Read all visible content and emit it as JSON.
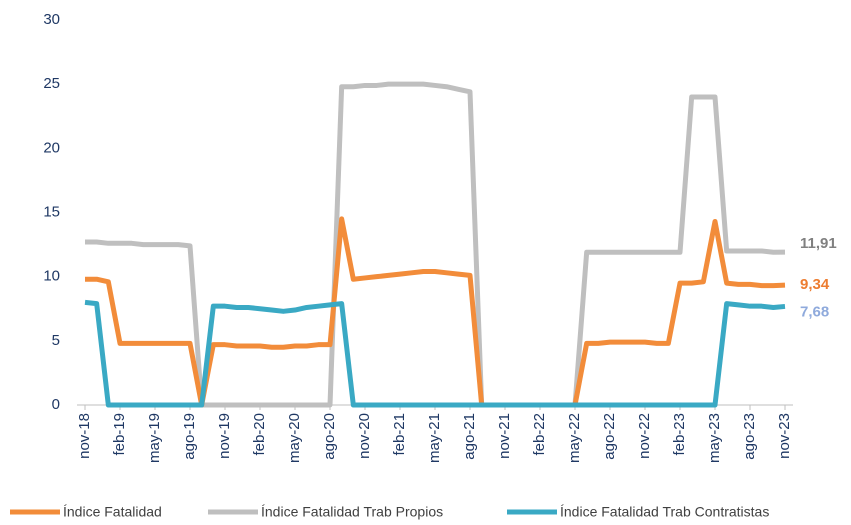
{
  "chart_data": {
    "type": "line",
    "categories": [
      "nov-18",
      null,
      null,
      "feb-19",
      null,
      null,
      "may-19",
      null,
      null,
      "ago-19",
      null,
      null,
      "nov-19",
      null,
      null,
      "feb-20",
      null,
      null,
      "may-20",
      null,
      null,
      "ago-20",
      null,
      null,
      "nov-20",
      null,
      null,
      "feb-21",
      null,
      null,
      "may-21",
      null,
      null,
      "ago-21",
      null,
      null,
      "nov-21",
      null,
      null,
      "feb-22",
      null,
      null,
      "may-22",
      null,
      null,
      "ago-22",
      null,
      null,
      "nov-22",
      null,
      null,
      "feb-23",
      null,
      null,
      "may-23",
      null,
      null,
      "ago-23",
      null,
      null,
      "nov-23"
    ],
    "series": [
      {
        "name": "Índice Fatalidad",
        "color": "#f28c3a",
        "label_color": "#ed7d31",
        "values": [
          9.8,
          9.8,
          9.6,
          4.8,
          4.8,
          4.8,
          4.8,
          4.8,
          4.8,
          4.8,
          0,
          4.7,
          4.7,
          4.6,
          4.6,
          4.6,
          4.5,
          4.5,
          4.6,
          4.6,
          4.7,
          4.7,
          14.5,
          9.8,
          9.9,
          10,
          10.1,
          10.2,
          10.3,
          10.4,
          10.4,
          10.3,
          10.2,
          10.1,
          0,
          0,
          0,
          0,
          0,
          0,
          0,
          0,
          0,
          4.8,
          4.8,
          4.9,
          4.9,
          4.9,
          4.9,
          4.8,
          4.8,
          9.5,
          9.5,
          9.6,
          14.3,
          9.5,
          9.4,
          9.4,
          9.3,
          9.3,
          9.34
        ],
        "value_labels": [
          null,
          null,
          null,
          null,
          null,
          null,
          null,
          null,
          null,
          null,
          null,
          null,
          null,
          null,
          null,
          null,
          null,
          null,
          null,
          null,
          null,
          null,
          null,
          null,
          null,
          null,
          null,
          null,
          null,
          null,
          null,
          null,
          null,
          null,
          null,
          null,
          null,
          null,
          null,
          null,
          null,
          null,
          null,
          null,
          null,
          null,
          null,
          null,
          null,
          null,
          null,
          null,
          null,
          null,
          null,
          null,
          null,
          null,
          null,
          null,
          "9,34"
        ]
      },
      {
        "name": "Índice Fatalidad Trab Propios",
        "color": "#bfbfbf",
        "label_color": "#808080",
        "values": [
          12.7,
          12.7,
          12.6,
          12.6,
          12.6,
          12.5,
          12.5,
          12.5,
          12.5,
          12.4,
          0,
          0,
          0,
          0,
          0,
          0,
          0,
          0,
          0,
          0,
          0,
          0,
          24.8,
          24.8,
          24.9,
          24.9,
          25,
          25,
          25,
          25,
          24.9,
          24.8,
          24.6,
          24.4,
          0,
          0,
          0,
          0,
          0,
          0,
          0,
          0,
          0,
          11.9,
          11.9,
          11.9,
          11.9,
          11.9,
          11.9,
          11.9,
          11.9,
          11.9,
          24,
          24,
          24,
          12,
          12,
          12,
          12,
          11.9,
          11.91
        ],
        "value_labels": [
          null,
          null,
          null,
          null,
          null,
          null,
          null,
          null,
          null,
          null,
          null,
          null,
          null,
          null,
          null,
          null,
          null,
          null,
          null,
          null,
          null,
          null,
          null,
          null,
          null,
          null,
          null,
          null,
          null,
          null,
          null,
          null,
          null,
          null,
          null,
          null,
          null,
          null,
          null,
          null,
          null,
          null,
          null,
          null,
          null,
          null,
          null,
          null,
          null,
          null,
          null,
          null,
          null,
          null,
          null,
          null,
          null,
          null,
          null,
          null,
          "11,91"
        ]
      },
      {
        "name": "Índice Fatalidad Trab Contratistas",
        "color": "#3aa9c4",
        "label_color": "#8faadc",
        "values": [
          8,
          7.9,
          0,
          0,
          0,
          0,
          0,
          0,
          0,
          0,
          0,
          7.7,
          7.7,
          7.6,
          7.6,
          7.5,
          7.4,
          7.3,
          7.4,
          7.6,
          7.7,
          7.8,
          7.9,
          0,
          0,
          0,
          0,
          0,
          0,
          0,
          0,
          0,
          0,
          0,
          0,
          0,
          0,
          0,
          0,
          0,
          0,
          0,
          0,
          0,
          0,
          0,
          0,
          0,
          0,
          0,
          0,
          0,
          0,
          0,
          0,
          7.9,
          7.8,
          7.7,
          7.7,
          7.6,
          7.68
        ],
        "value_labels": [
          null,
          null,
          null,
          null,
          null,
          null,
          null,
          null,
          null,
          null,
          null,
          null,
          null,
          null,
          null,
          null,
          null,
          null,
          null,
          null,
          null,
          null,
          null,
          null,
          null,
          null,
          null,
          null,
          null,
          null,
          null,
          null,
          null,
          null,
          null,
          null,
          null,
          null,
          null,
          null,
          null,
          null,
          null,
          null,
          null,
          null,
          null,
          null,
          null,
          null,
          null,
          null,
          null,
          null,
          null,
          null,
          null,
          null,
          null,
          null,
          "7,68"
        ]
      }
    ],
    "ylim": [
      0,
      30
    ],
    "yticks": [
      0,
      5,
      10,
      15,
      20,
      25,
      30
    ],
    "legend": "bottom"
  }
}
